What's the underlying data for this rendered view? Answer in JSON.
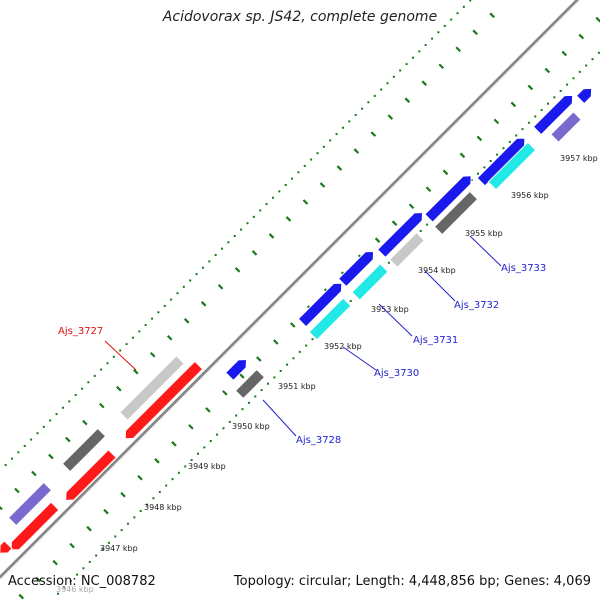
{
  "title": "Acidovorax sp. JS42, complete genome",
  "footer": {
    "accession": "Accession: NC_008782",
    "topology": "Topology: circular; Length: 4,448,856 bp; Genes: 4,069"
  },
  "colors": {
    "blue": "#1a1aee",
    "red": "#ff1a1a",
    "cyan": "#22e8e8",
    "dark_gray": "#666666",
    "light_gray": "#c8c8c8",
    "purple": "#7a6ad0",
    "tick_green": "#1a7a1a",
    "backbone": "#888888",
    "label_blue": "#2222cc",
    "label_red": "#dd1111"
  },
  "scale": {
    "unit": "kbp",
    "labels": [
      "3946 kbp",
      "3947 kbp",
      "3948 kbp",
      "3949 kbp",
      "3950 kbp",
      "3951 kbp",
      "3952 kbp",
      "3953 kbp",
      "3954 kbp",
      "3955 kbp",
      "3956 kbp",
      "3957 kbp"
    ]
  },
  "gene_labels": [
    {
      "text": "Ajs_3727",
      "strand": "minus"
    },
    {
      "text": "Ajs_3728",
      "strand": "plus"
    },
    {
      "text": "Ajs_3730",
      "strand": "plus"
    },
    {
      "text": "Ajs_3731",
      "strand": "plus"
    },
    {
      "text": "Ajs_3732",
      "strand": "plus"
    },
    {
      "text": "Ajs_3733",
      "strand": "plus"
    }
  ]
}
